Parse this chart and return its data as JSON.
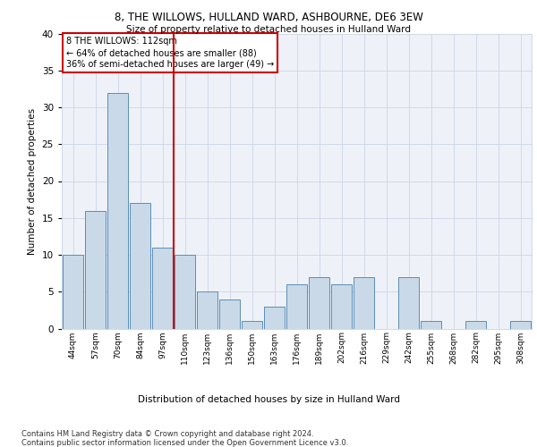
{
  "title1": "8, THE WILLOWS, HULLAND WARD, ASHBOURNE, DE6 3EW",
  "title2": "Size of property relative to detached houses in Hulland Ward",
  "xlabel": "Distribution of detached houses by size in Hulland Ward",
  "ylabel": "Number of detached properties",
  "categories": [
    "44sqm",
    "57sqm",
    "70sqm",
    "84sqm",
    "97sqm",
    "110sqm",
    "123sqm",
    "136sqm",
    "150sqm",
    "163sqm",
    "176sqm",
    "189sqm",
    "202sqm",
    "216sqm",
    "229sqm",
    "242sqm",
    "255sqm",
    "268sqm",
    "282sqm",
    "295sqm",
    "308sqm"
  ],
  "values": [
    10,
    16,
    32,
    17,
    11,
    10,
    5,
    4,
    1,
    3,
    6,
    7,
    6,
    7,
    0,
    7,
    1,
    0,
    1,
    0,
    1
  ],
  "bar_color": "#c9d9e8",
  "bar_edge_color": "#5b8db8",
  "vline_color": "#cc0000",
  "annotation_lines": [
    "8 THE WILLOWS: 112sqm",
    "← 64% of detached houses are smaller (88)",
    "36% of semi-detached houses are larger (49) →"
  ],
  "annotation_box_color": "#ffffff",
  "annotation_box_edge_color": "#cc0000",
  "ylim": [
    0,
    40
  ],
  "yticks": [
    0,
    5,
    10,
    15,
    20,
    25,
    30,
    35,
    40
  ],
  "grid_color": "#d0d8e8",
  "bg_color": "#eef2f8",
  "footer1": "Contains HM Land Registry data © Crown copyright and database right 2024.",
  "footer2": "Contains public sector information licensed under the Open Government Licence v3.0."
}
